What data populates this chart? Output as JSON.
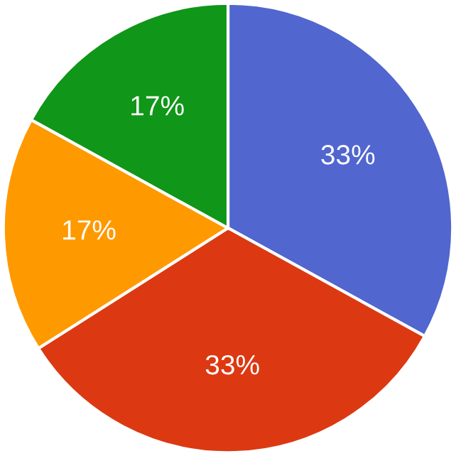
{
  "chart_data": {
    "type": "pie",
    "categories": [
      null,
      null,
      null,
      null
    ],
    "values": [
      33,
      33,
      17,
      17
    ],
    "colors": [
      "#5166cf",
      "#dc3912",
      "#ff9900",
      "#109618"
    ],
    "value_labels": [
      "33%",
      "33%",
      "17%",
      "17%"
    ]
  }
}
